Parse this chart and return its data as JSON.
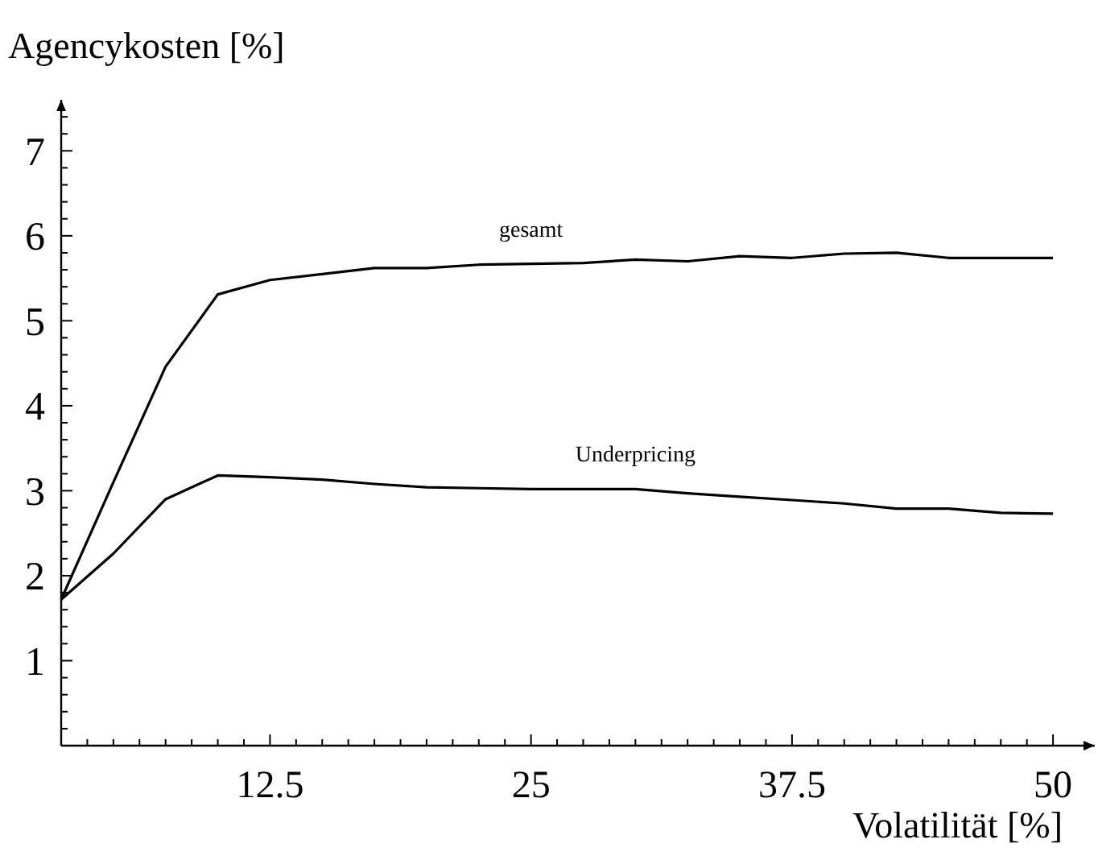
{
  "chart_data": {
    "type": "line",
    "xlabel": "Volatilität [%]",
    "ylabel": "Agencykosten [%]",
    "x": [
      2.5,
      5,
      7.5,
      10,
      12.5,
      15,
      17.5,
      20,
      22.5,
      25,
      27.5,
      30,
      32.5,
      35,
      37.5,
      40,
      42.5,
      45,
      47.5,
      50
    ],
    "series": [
      {
        "name": "gesamt",
        "color": "#000000",
        "values": [
          1.72,
          3.1,
          4.46,
          5.31,
          5.48,
          5.55,
          5.62,
          5.62,
          5.66,
          5.67,
          5.68,
          5.72,
          5.7,
          5.76,
          5.74,
          5.79,
          5.8,
          5.74,
          5.74,
          5.74
        ]
      },
      {
        "name": "Underpricing",
        "color": "#000000",
        "values": [
          1.72,
          2.26,
          2.9,
          3.18,
          3.16,
          3.13,
          3.08,
          3.04,
          3.03,
          3.02,
          3.02,
          3.02,
          2.97,
          2.93,
          2.89,
          2.85,
          2.79,
          2.79,
          2.74,
          2.73
        ]
      }
    ],
    "xlim": [
      2.5,
      52
    ],
    "ylim": [
      0,
      7.6
    ],
    "xticks": [
      {
        "value": 3.75,
        "label": null
      },
      {
        "value": 5,
        "label": null
      },
      {
        "value": 6.25,
        "label": null
      },
      {
        "value": 7.5,
        "label": null
      },
      {
        "value": 8.75,
        "label": null
      },
      {
        "value": 10,
        "label": null
      },
      {
        "value": 11.25,
        "label": null
      },
      12.5,
      {
        "value": 13.75,
        "label": null
      },
      {
        "value": 15,
        "label": null
      },
      {
        "value": 16.25,
        "label": null
      },
      {
        "value": 17.5,
        "label": null
      },
      {
        "value": 18.75,
        "label": null
      },
      {
        "value": 20,
        "label": null
      },
      {
        "value": 21.25,
        "label": null
      },
      {
        "value": 22.5,
        "label": null
      },
      {
        "value": 23.75,
        "label": null
      },
      25,
      {
        "value": 26.25,
        "label": null
      },
      {
        "value": 27.5,
        "label": null
      },
      {
        "value": 28.75,
        "label": null
      },
      {
        "value": 30,
        "label": null
      },
      {
        "value": 31.25,
        "label": null
      },
      {
        "value": 32.5,
        "label": null
      },
      {
        "value": 33.75,
        "label": null
      },
      {
        "value": 35,
        "label": null
      },
      {
        "value": 36.25,
        "label": null
      },
      37.5,
      {
        "value": 38.75,
        "label": null
      },
      {
        "value": 40,
        "label": null
      },
      {
        "value": 41.25,
        "label": null
      },
      {
        "value": 42.5,
        "label": null
      },
      {
        "value": 43.75,
        "label": null
      },
      {
        "value": 45,
        "label": null
      },
      {
        "value": 46.25,
        "label": null
      },
      {
        "value": 47.5,
        "label": null
      },
      {
        "value": 48.75,
        "label": null
      },
      50
    ],
    "yticks": [
      {
        "value": 0.2,
        "label": null
      },
      {
        "value": 0.4,
        "label": null
      },
      {
        "value": 0.6,
        "label": null
      },
      {
        "value": 0.8,
        "label": null
      },
      1,
      {
        "value": 1.2,
        "label": null
      },
      {
        "value": 1.4,
        "label": null
      },
      {
        "value": 1.6,
        "label": null
      },
      {
        "value": 1.8,
        "label": null
      },
      2,
      {
        "value": 2.2,
        "label": null
      },
      {
        "value": 2.4,
        "label": null
      },
      {
        "value": 2.6,
        "label": null
      },
      {
        "value": 2.8,
        "label": null
      },
      3,
      {
        "value": 3.2,
        "label": null
      },
      {
        "value": 3.4,
        "label": null
      },
      {
        "value": 3.6,
        "label": null
      },
      {
        "value": 3.8,
        "label": null
      },
      4,
      {
        "value": 4.2,
        "label": null
      },
      {
        "value": 4.4,
        "label": null
      },
      {
        "value": 4.6,
        "label": null
      },
      {
        "value": 4.8,
        "label": null
      },
      5,
      {
        "value": 5.2,
        "label": null
      },
      {
        "value": 5.4,
        "label": null
      },
      {
        "value": 5.6,
        "label": null
      },
      {
        "value": 5.8,
        "label": null
      },
      6,
      {
        "value": 6.2,
        "label": null
      },
      {
        "value": 6.4,
        "label": null
      },
      {
        "value": 6.6,
        "label": null
      },
      {
        "value": 6.8,
        "label": null
      },
      7,
      {
        "value": 7.2,
        "label": null
      },
      {
        "value": 7.4,
        "label": null
      }
    ],
    "grid": false,
    "marker": "none",
    "line_style": "solid"
  }
}
